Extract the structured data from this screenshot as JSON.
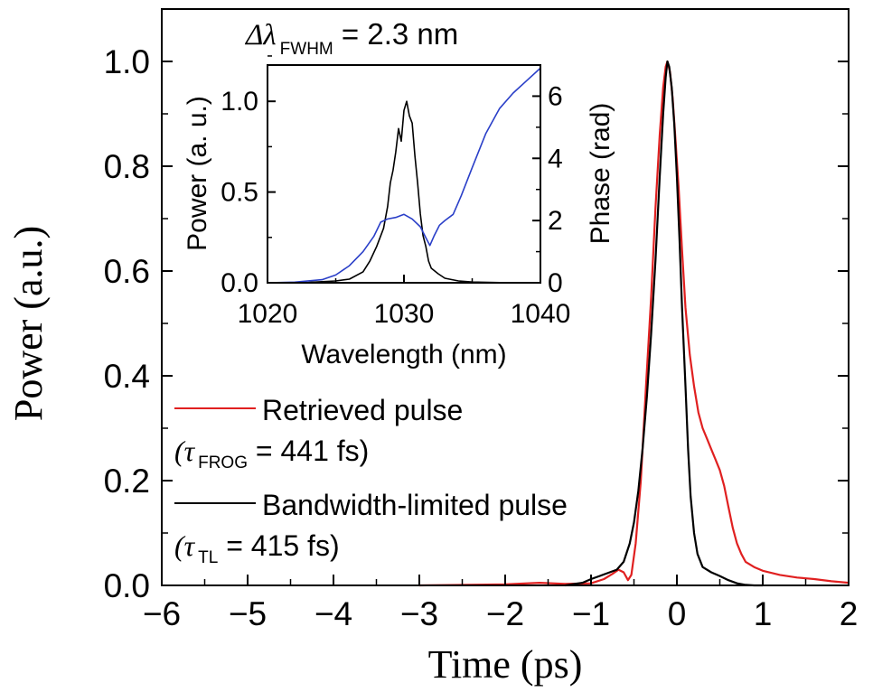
{
  "chart_data": [
    {
      "type": "line",
      "panel": "main",
      "xlabel": "Time (ps)",
      "ylabel": "Power (a.u.)",
      "xlim": [
        -6,
        2
      ],
      "ylim": [
        0,
        1.1
      ],
      "xticks": [
        "−6",
        "−5",
        "−4",
        "−3",
        "−2",
        "−1",
        "0",
        "1",
        "2"
      ],
      "yticks": [
        "0.0",
        "0.2",
        "0.4",
        "0.6",
        "0.8",
        "1.0"
      ],
      "grid": false,
      "legend_position": "bottom-left",
      "series": [
        {
          "name": "Retrieved pulse",
          "annotation": {
            "prefix": "(τ",
            "sub": "FROG",
            "suffix": " = 441 fs)"
          },
          "color": "#e02020",
          "points": [
            [
              -3.0,
              0.0
            ],
            [
              -2.0,
              0.002
            ],
            [
              -1.6,
              0.005
            ],
            [
              -1.3,
              0.003
            ],
            [
              -1.0,
              0.004
            ],
            [
              -0.85,
              0.012
            ],
            [
              -0.75,
              0.022
            ],
            [
              -0.68,
              0.03
            ],
            [
              -0.62,
              0.025
            ],
            [
              -0.57,
              0.01
            ],
            [
              -0.53,
              0.02
            ],
            [
              -0.48,
              0.08
            ],
            [
              -0.42,
              0.2
            ],
            [
              -0.36,
              0.38
            ],
            [
              -0.3,
              0.55
            ],
            [
              -0.25,
              0.72
            ],
            [
              -0.2,
              0.86
            ],
            [
              -0.16,
              0.95
            ],
            [
              -0.13,
              0.99
            ],
            [
              -0.11,
              1.0
            ],
            [
              -0.08,
              0.98
            ],
            [
              -0.05,
              0.93
            ],
            [
              -0.02,
              0.86
            ],
            [
              0.02,
              0.76
            ],
            [
              0.06,
              0.64
            ],
            [
              0.1,
              0.53
            ],
            [
              0.15,
              0.44
            ],
            [
              0.2,
              0.38
            ],
            [
              0.25,
              0.33
            ],
            [
              0.3,
              0.3
            ],
            [
              0.35,
              0.28
            ],
            [
              0.4,
              0.26
            ],
            [
              0.45,
              0.24
            ],
            [
              0.5,
              0.22
            ],
            [
              0.55,
              0.19
            ],
            [
              0.6,
              0.15
            ],
            [
              0.65,
              0.11
            ],
            [
              0.7,
              0.08
            ],
            [
              0.75,
              0.06
            ],
            [
              0.8,
              0.045
            ],
            [
              0.9,
              0.035
            ],
            [
              1.0,
              0.028
            ],
            [
              1.2,
              0.02
            ],
            [
              1.4,
              0.015
            ],
            [
              1.6,
              0.012
            ],
            [
              1.8,
              0.008
            ],
            [
              2.0,
              0.005
            ]
          ]
        },
        {
          "name": "Bandwidth-limited pulse",
          "annotation": {
            "prefix": "(τ",
            "sub": "TL",
            "suffix": " = 415 fs)"
          },
          "color": "#000000",
          "points": [
            [
              -1.3,
              0.0
            ],
            [
              -1.1,
              0.005
            ],
            [
              -1.0,
              0.012
            ],
            [
              -0.9,
              0.018
            ],
            [
              -0.8,
              0.024
            ],
            [
              -0.7,
              0.03
            ],
            [
              -0.62,
              0.045
            ],
            [
              -0.55,
              0.08
            ],
            [
              -0.5,
              0.12
            ],
            [
              -0.45,
              0.18
            ],
            [
              -0.4,
              0.26
            ],
            [
              -0.35,
              0.36
            ],
            [
              -0.3,
              0.48
            ],
            [
              -0.25,
              0.62
            ],
            [
              -0.2,
              0.78
            ],
            [
              -0.16,
              0.9
            ],
            [
              -0.13,
              0.97
            ],
            [
              -0.11,
              1.0
            ],
            [
              -0.09,
              0.99
            ],
            [
              -0.06,
              0.95
            ],
            [
              -0.03,
              0.88
            ],
            [
              0.0,
              0.78
            ],
            [
              0.03,
              0.66
            ],
            [
              0.06,
              0.53
            ],
            [
              0.1,
              0.38
            ],
            [
              0.13,
              0.26
            ],
            [
              0.16,
              0.17
            ],
            [
              0.2,
              0.1
            ],
            [
              0.24,
              0.06
            ],
            [
              0.3,
              0.035
            ],
            [
              0.4,
              0.025
            ],
            [
              0.5,
              0.018
            ],
            [
              0.6,
              0.01
            ],
            [
              0.7,
              0.004
            ],
            [
              0.8,
              0.001
            ],
            [
              0.9,
              0.0
            ],
            [
              1.0,
              0.0
            ]
          ]
        }
      ]
    },
    {
      "type": "line",
      "panel": "inset",
      "title": {
        "prefix": "Δλ",
        "sub": "FWHM",
        "suffix": " = 2.3 nm"
      },
      "xlabel": "Wavelength (nm)",
      "ylabel_left": "Power (a. u.)",
      "ylabel_right": "Phase (rad)",
      "xlim": [
        1020,
        1040
      ],
      "ylim_left": [
        0,
        1.2
      ],
      "ylim_right": [
        0,
        7
      ],
      "xticks": [
        "1020",
        "1030",
        "1040"
      ],
      "yticks_left": [
        "0.0",
        "0.5",
        "1.0"
      ],
      "yticks_right": [
        "0",
        "2",
        "4",
        "6"
      ],
      "series": [
        {
          "color": "#000000",
          "axis": "left",
          "points": [
            [
              1020,
              0.0
            ],
            [
              1023,
              0.002
            ],
            [
              1025,
              0.01
            ],
            [
              1026,
              0.02
            ],
            [
              1027,
              0.06
            ],
            [
              1027.5,
              0.12
            ],
            [
              1028,
              0.2
            ],
            [
              1028.5,
              0.3
            ],
            [
              1028.8,
              0.42
            ],
            [
              1029.0,
              0.55
            ],
            [
              1029.2,
              0.62
            ],
            [
              1029.4,
              0.72
            ],
            [
              1029.6,
              0.85
            ],
            [
              1029.8,
              0.78
            ],
            [
              1030.0,
              0.95
            ],
            [
              1030.2,
              1.0
            ],
            [
              1030.4,
              0.92
            ],
            [
              1030.6,
              0.88
            ],
            [
              1030.8,
              0.7
            ],
            [
              1031.0,
              0.55
            ],
            [
              1031.2,
              0.38
            ],
            [
              1031.4,
              0.26
            ],
            [
              1031.6,
              0.2
            ],
            [
              1031.8,
              0.12
            ],
            [
              1032.0,
              0.08
            ],
            [
              1032.5,
              0.05
            ],
            [
              1033,
              0.025
            ],
            [
              1034,
              0.01
            ],
            [
              1035,
              0.004
            ],
            [
              1037,
              0.001
            ],
            [
              1040,
              0.0
            ]
          ]
        },
        {
          "color": "#2a3fc8",
          "axis": "right",
          "points": [
            [
              1020,
              0.0
            ],
            [
              1022,
              0.02
            ],
            [
              1024,
              0.1
            ],
            [
              1025,
              0.25
            ],
            [
              1026,
              0.55
            ],
            [
              1027,
              1.0
            ],
            [
              1027.8,
              1.5
            ],
            [
              1028.3,
              1.95
            ],
            [
              1028.8,
              2.05
            ],
            [
              1029.4,
              2.1
            ],
            [
              1030.0,
              2.2
            ],
            [
              1030.6,
              2.05
            ],
            [
              1031.2,
              1.8
            ],
            [
              1031.6,
              1.45
            ],
            [
              1031.9,
              1.2
            ],
            [
              1032.2,
              1.5
            ],
            [
              1032.6,
              1.85
            ],
            [
              1033.0,
              2.0
            ],
            [
              1033.6,
              2.2
            ],
            [
              1034.2,
              2.8
            ],
            [
              1035.0,
              3.7
            ],
            [
              1036.0,
              4.8
            ],
            [
              1037.0,
              5.6
            ],
            [
              1038.0,
              6.1
            ],
            [
              1039.0,
              6.5
            ],
            [
              1040.0,
              6.9
            ]
          ]
        }
      ]
    }
  ]
}
